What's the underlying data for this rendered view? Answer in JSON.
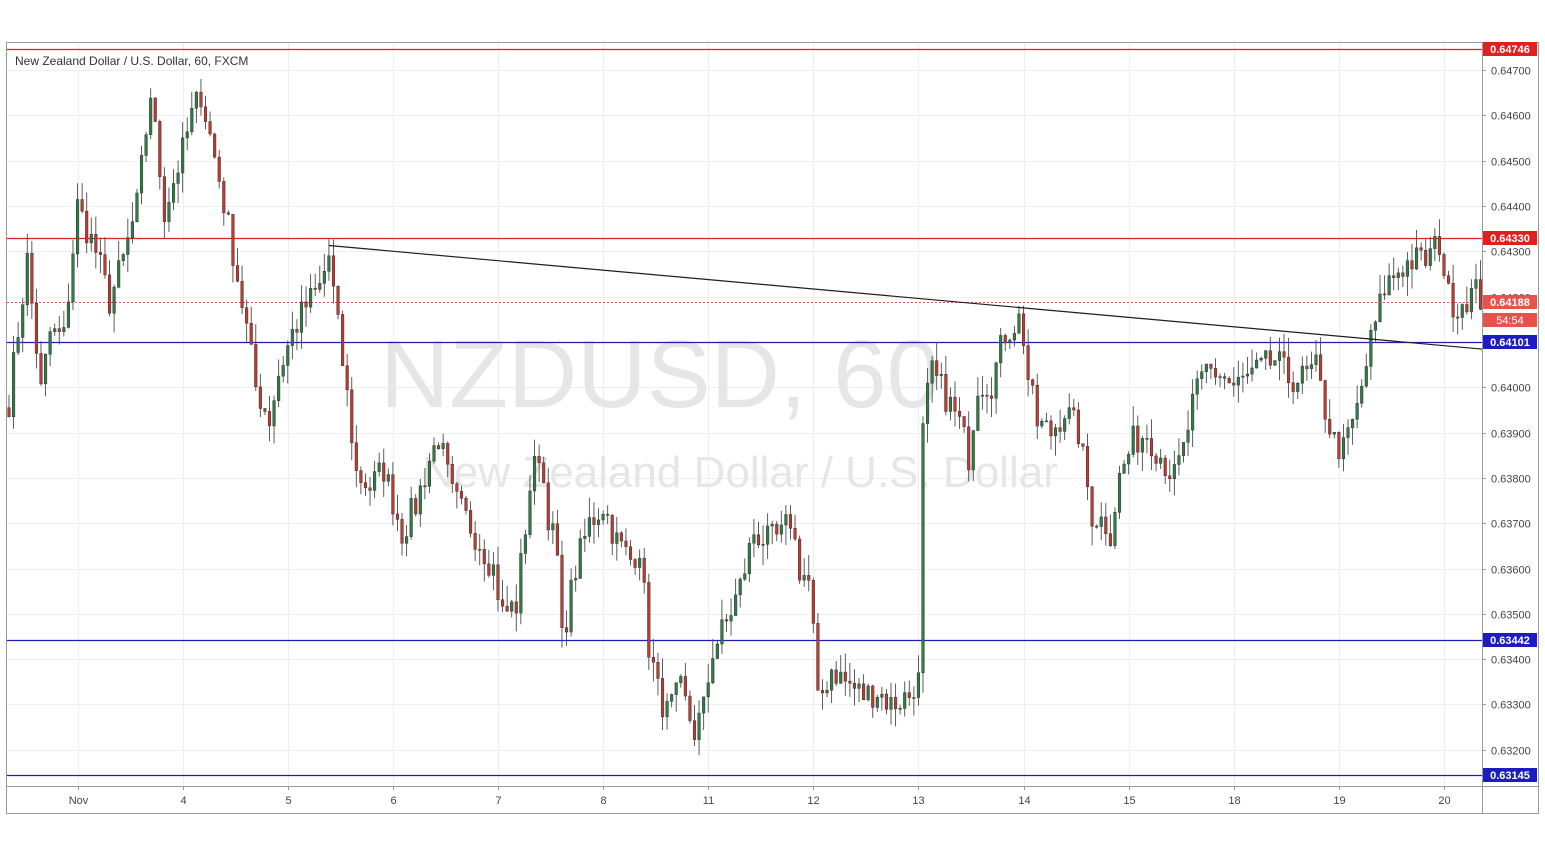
{
  "chart_data": {
    "type": "candlestick",
    "title": "New Zealand Dollar / U.S. Dollar, 60, FXCM",
    "watermark": {
      "symbol": "NZDUSD, 60",
      "name": "New Zealand Dollar / U.S. Dollar"
    },
    "ylim": [
      0.6312,
      0.6476
    ],
    "y_ticks": [
      "0.63200",
      "0.63300",
      "0.63400",
      "0.63500",
      "0.63600",
      "0.63700",
      "0.63800",
      "0.63900",
      "0.64000",
      "0.64100",
      "0.64200",
      "0.64300",
      "0.64400",
      "0.64500",
      "0.64600",
      "0.64700"
    ],
    "x_ticks": [
      {
        "label": "Nov",
        "bar": 15
      },
      {
        "label": "4",
        "bar": 38
      },
      {
        "label": "5",
        "bar": 61
      },
      {
        "label": "6",
        "bar": 84
      },
      {
        "label": "7",
        "bar": 107
      },
      {
        "label": "8",
        "bar": 130
      },
      {
        "label": "11",
        "bar": 153
      },
      {
        "label": "12",
        "bar": 176
      },
      {
        "label": "13",
        "bar": 199
      },
      {
        "label": "14",
        "bar": 222
      },
      {
        "label": "15",
        "bar": 245
      },
      {
        "label": "18",
        "bar": 268
      },
      {
        "label": "19",
        "bar": 291
      },
      {
        "label": "20",
        "bar": 314
      }
    ],
    "horizontal_levels": [
      {
        "value": 0.64746,
        "label": "0.64746",
        "color": "#e21f1f"
      },
      {
        "value": 0.6433,
        "label": "0.64330",
        "color": "#e21f1f"
      },
      {
        "value": 0.64101,
        "label": "0.64101",
        "color": "#1c1cbf"
      },
      {
        "value": 0.63442,
        "label": "0.63442",
        "color": "#1c1cbf"
      },
      {
        "value": 0.63145,
        "label": "0.63145",
        "color": "#1c1cbf"
      }
    ],
    "current_price": {
      "value": 0.64188,
      "label": "0.64188",
      "countdown": "54:54",
      "color": "#e6524d"
    },
    "trendline": {
      "start": {
        "bar": 70,
        "value": 0.64313
      },
      "end": {
        "bar": 325,
        "value": 0.64082
      }
    },
    "anchors": [
      [
        0,
        0.6397
      ],
      [
        4,
        0.6428
      ],
      [
        7,
        0.6399
      ],
      [
        9,
        0.6412
      ],
      [
        12,
        0.6411
      ],
      [
        15,
        0.644
      ],
      [
        19,
        0.643
      ],
      [
        22,
        0.6419
      ],
      [
        25,
        0.6428
      ],
      [
        28,
        0.644
      ],
      [
        31,
        0.6465
      ],
      [
        34,
        0.6439
      ],
      [
        38,
        0.6452
      ],
      [
        40,
        0.646
      ],
      [
        42,
        0.6465
      ],
      [
        46,
        0.6446
      ],
      [
        49,
        0.643
      ],
      [
        52,
        0.6413
      ],
      [
        54,
        0.64
      ],
      [
        57,
        0.6393
      ],
      [
        59,
        0.6403
      ],
      [
        62,
        0.6412
      ],
      [
        65,
        0.6418
      ],
      [
        68,
        0.6422
      ],
      [
        70,
        0.6429
      ],
      [
        72,
        0.6413
      ],
      [
        74,
        0.6398
      ],
      [
        76,
        0.6381
      ],
      [
        79,
        0.6378
      ],
      [
        82,
        0.6382
      ],
      [
        86,
        0.6368
      ],
      [
        89,
        0.6374
      ],
      [
        92,
        0.6384
      ],
      [
        94,
        0.6389
      ],
      [
        97,
        0.6376
      ],
      [
        100,
        0.6371
      ],
      [
        103,
        0.6366
      ],
      [
        106,
        0.636
      ],
      [
        108,
        0.635
      ],
      [
        111,
        0.6352
      ],
      [
        114,
        0.6378
      ],
      [
        116,
        0.6386
      ],
      [
        118,
        0.6372
      ],
      [
        120,
        0.6362
      ],
      [
        121,
        0.6344
      ],
      [
        124,
        0.636
      ],
      [
        127,
        0.637
      ],
      [
        130,
        0.6374
      ],
      [
        133,
        0.6366
      ],
      [
        136,
        0.6362
      ],
      [
        138,
        0.6365
      ],
      [
        140,
        0.6343
      ],
      [
        142,
        0.6333
      ],
      [
        144,
        0.6328
      ],
      [
        147,
        0.6333
      ],
      [
        150,
        0.6324
      ],
      [
        152,
        0.6329
      ],
      [
        154,
        0.6342
      ],
      [
        157,
        0.6348
      ],
      [
        160,
        0.6356
      ],
      [
        163,
        0.6368
      ],
      [
        166,
        0.6366
      ],
      [
        169,
        0.6367
      ],
      [
        171,
        0.6371
      ],
      [
        173,
        0.636
      ],
      [
        175,
        0.6357
      ],
      [
        176,
        0.6346
      ],
      [
        177,
        0.633
      ],
      [
        180,
        0.6338
      ],
      [
        183,
        0.6335
      ],
      [
        187,
        0.6332
      ],
      [
        190,
        0.6333
      ],
      [
        193,
        0.633
      ],
      [
        197,
        0.6332
      ],
      [
        199,
        0.6337
      ],
      [
        200,
        0.6393
      ],
      [
        202,
        0.6403
      ],
      [
        205,
        0.6398
      ],
      [
        208,
        0.6392
      ],
      [
        210,
        0.6385
      ],
      [
        212,
        0.6401
      ],
      [
        215,
        0.6401
      ],
      [
        218,
        0.6412
      ],
      [
        221,
        0.6415
      ],
      [
        222,
        0.6411
      ],
      [
        223,
        0.6402
      ],
      [
        225,
        0.6392
      ],
      [
        228,
        0.639
      ],
      [
        231,
        0.6395
      ],
      [
        234,
        0.639
      ],
      [
        237,
        0.6372
      ],
      [
        240,
        0.637
      ],
      [
        241,
        0.6368
      ],
      [
        243,
        0.638
      ],
      [
        246,
        0.6388
      ],
      [
        249,
        0.639
      ],
      [
        252,
        0.6385
      ],
      [
        255,
        0.638
      ],
      [
        257,
        0.6386
      ],
      [
        259,
        0.6396
      ],
      [
        262,
        0.6404
      ],
      [
        265,
        0.6403
      ],
      [
        268,
        0.64
      ],
      [
        271,
        0.6402
      ],
      [
        274,
        0.6404
      ],
      [
        277,
        0.6406
      ],
      [
        280,
        0.6402
      ],
      [
        283,
        0.6402
      ],
      [
        286,
        0.6404
      ],
      [
        288,
        0.6395
      ],
      [
        290,
        0.6388
      ],
      [
        292,
        0.6386
      ],
      [
        295,
        0.6395
      ],
      [
        298,
        0.641
      ],
      [
        301,
        0.6422
      ],
      [
        304,
        0.6426
      ],
      [
        307,
        0.6428
      ],
      [
        310,
        0.6428
      ],
      [
        313,
        0.6432
      ],
      [
        315,
        0.642
      ],
      [
        317,
        0.6418
      ],
      [
        319,
        0.642
      ],
      [
        321,
        0.6421
      ],
      [
        323,
        0.6418
      ],
      [
        324,
        0.641
      ],
      [
        325,
        0.6421
      ],
      [
        326,
        0.642
      ],
      [
        327,
        0.6419
      ]
    ]
  }
}
